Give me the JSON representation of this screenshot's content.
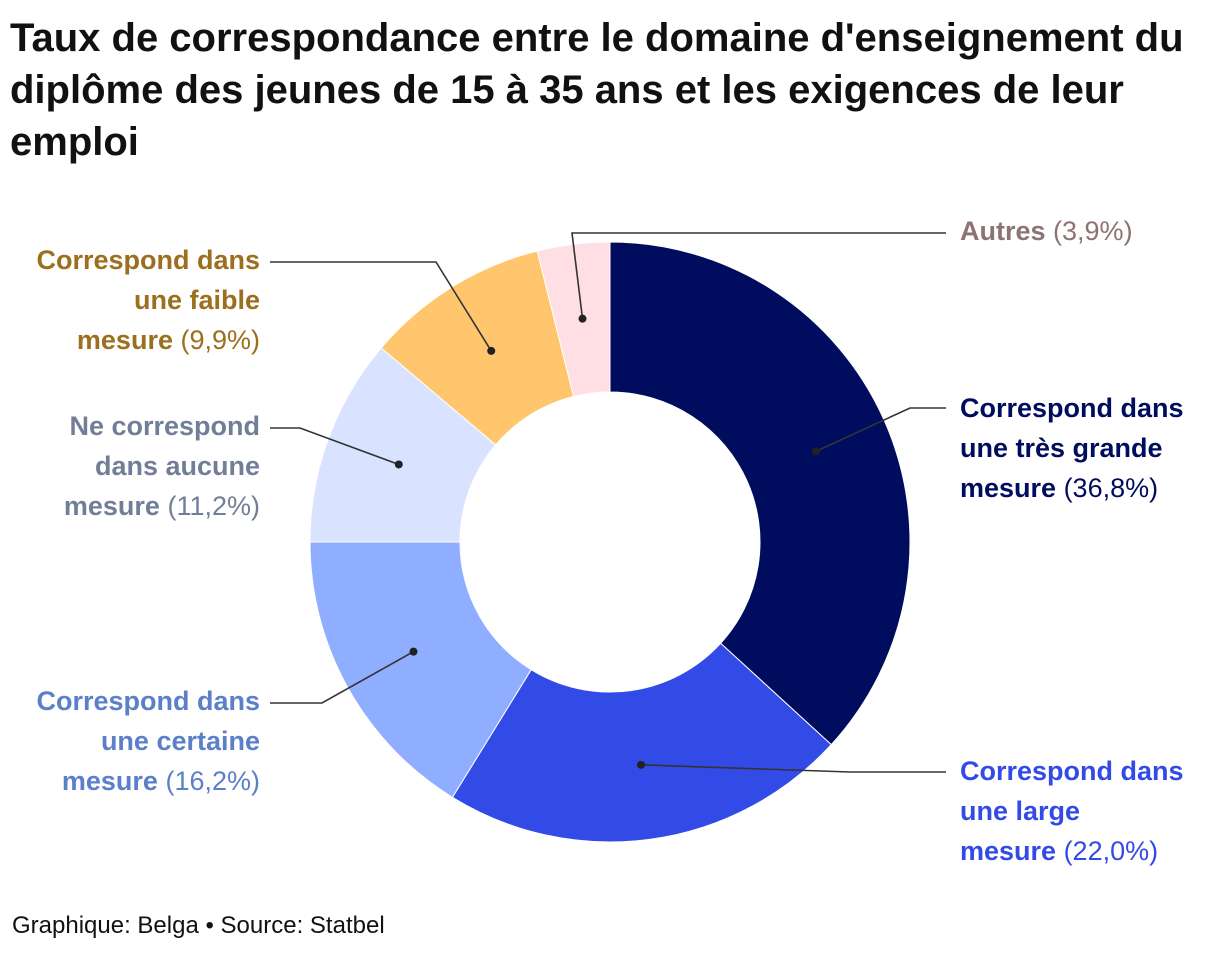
{
  "chart_data": {
    "type": "pie",
    "title": "Taux de correspondance entre le domaine d'enseignement du diplôme des jeunes de 15 à 35 ans et les exigences de leur emploi",
    "donut": true,
    "slices": [
      {
        "label_lines": [
          "Correspond dans",
          "une très grande",
          "mesure"
        ],
        "value": 36.8,
        "value_label": "(36,8%)",
        "color": "#000c5e",
        "label_color": "#000c5e"
      },
      {
        "label_lines": [
          "Correspond dans",
          "une large",
          "mesure"
        ],
        "value": 22.0,
        "value_label": "(22,0%)",
        "color": "#324be6",
        "label_color": "#324be6"
      },
      {
        "label_lines": [
          "Correspond dans",
          "une certaine",
          "mesure"
        ],
        "value": 16.2,
        "value_label": "(16,2%)",
        "color": "#90aeff",
        "label_color": "#5b7fc8"
      },
      {
        "label_lines": [
          "Ne correspond",
          "dans aucune",
          "mesure"
        ],
        "value": 11.2,
        "value_label": "(11,2%)",
        "color": "#d9e3ff",
        "label_color": "#727e98"
      },
      {
        "label_lines": [
          "Correspond dans",
          "une faible",
          "mesure"
        ],
        "value": 9.9,
        "value_label": "(9,9%)",
        "color": "#ffc66e",
        "label_color": "#9c6f1e"
      },
      {
        "label_lines": [
          "Autres"
        ],
        "value": 3.9,
        "value_label": "(3,9%)",
        "color": "#ffdfe3",
        "label_color": "#8d7373"
      }
    ]
  },
  "footer": {
    "credit": "Graphique: Belga",
    "separator": "•",
    "source": "Source: Statbel"
  }
}
